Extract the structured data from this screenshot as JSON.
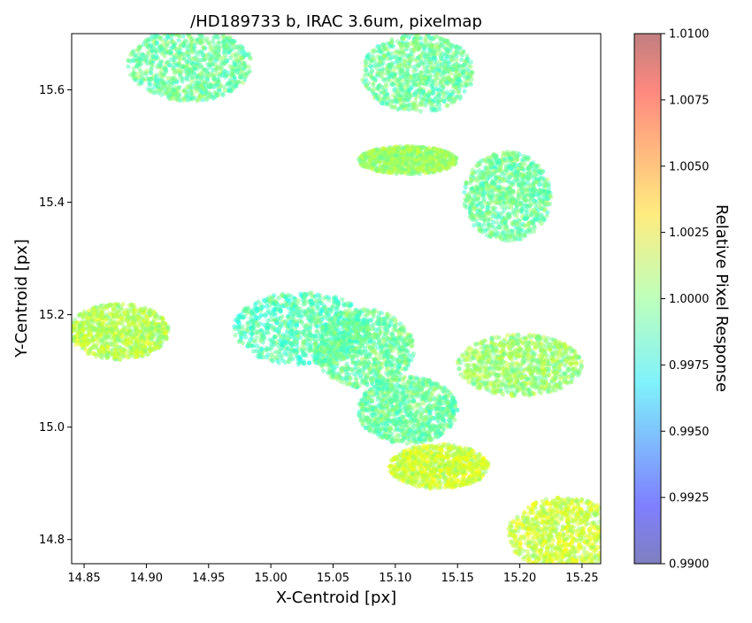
{
  "chart_data": {
    "type": "scatter",
    "title": "/HD189733 b, IRAC 3.6um, pixelmap",
    "xlabel": "X-Centroid [px]",
    "ylabel": "Y-Centroid [px]",
    "xlim": [
      14.84,
      15.265
    ],
    "ylim": [
      14.757,
      15.7
    ],
    "xticks": [
      14.85,
      14.9,
      14.95,
      15.0,
      15.05,
      15.1,
      15.15,
      15.2,
      15.25
    ],
    "xtick_labels": [
      "14.85",
      "14.90",
      "14.95",
      "15.00",
      "15.05",
      "15.10",
      "15.15",
      "15.20",
      "15.25"
    ],
    "yticks": [
      14.8,
      15.0,
      15.2,
      15.4,
      15.6
    ],
    "ytick_labels": [
      "14.8",
      "15.0",
      "15.2",
      "15.4",
      "15.6"
    ],
    "grid": false,
    "colorbar": {
      "label": "Relative Pixel Response",
      "min": 0.99,
      "max": 1.01,
      "ticks": [
        0.99,
        0.9925,
        0.995,
        0.9975,
        1.0,
        1.0025,
        1.005,
        1.0075,
        1.01
      ],
      "tick_labels": [
        "0.9900",
        "0.9925",
        "0.9950",
        "0.9975",
        "1.0000",
        "1.0025",
        "1.0050",
        "1.0075",
        "1.0100"
      ],
      "colormap": "jet (alpha 0.5)"
    },
    "point_clusters": [
      {
        "x_center": 14.935,
        "y_center": 15.645,
        "x_halfwidth": 0.05,
        "y_halfwidth": 0.065,
        "value": 0.9995
      },
      {
        "x_center": 15.118,
        "y_center": 15.63,
        "x_halfwidth": 0.045,
        "y_halfwidth": 0.07,
        "value": 0.9995
      },
      {
        "x_center": 15.11,
        "y_center": 15.475,
        "x_halfwidth": 0.04,
        "y_halfwidth": 0.025,
        "value": 1.0005
      },
      {
        "x_center": 15.19,
        "y_center": 15.41,
        "x_halfwidth": 0.035,
        "y_halfwidth": 0.08,
        "value": 0.9995
      },
      {
        "x_center": 14.878,
        "y_center": 15.17,
        "x_halfwidth": 0.04,
        "y_halfwidth": 0.05,
        "value": 1.001
      },
      {
        "x_center": 15.025,
        "y_center": 15.175,
        "x_halfwidth": 0.055,
        "y_halfwidth": 0.065,
        "value": 0.999
      },
      {
        "x_center": 15.075,
        "y_center": 15.14,
        "x_halfwidth": 0.04,
        "y_halfwidth": 0.07,
        "value": 0.9995
      },
      {
        "x_center": 15.11,
        "y_center": 15.03,
        "x_halfwidth": 0.04,
        "y_halfwidth": 0.06,
        "value": 0.9995
      },
      {
        "x_center": 15.135,
        "y_center": 14.93,
        "x_halfwidth": 0.04,
        "y_halfwidth": 0.04,
        "value": 1.0015
      },
      {
        "x_center": 15.2,
        "y_center": 15.11,
        "x_halfwidth": 0.05,
        "y_halfwidth": 0.055,
        "value": 1.0005
      },
      {
        "x_center": 15.235,
        "y_center": 14.81,
        "x_halfwidth": 0.045,
        "y_halfwidth": 0.065,
        "value": 1.0015
      }
    ]
  }
}
